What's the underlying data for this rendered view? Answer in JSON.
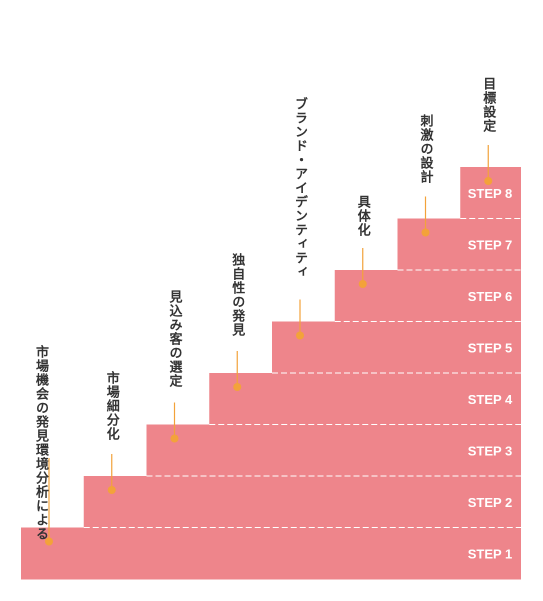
{
  "colors": {
    "stair_fill": "#ee858b",
    "divider": "#ffffff",
    "connector": "#f3a23a",
    "text": "#333333"
  },
  "steps": [
    {
      "label": "STEP 1",
      "lines": [
        "市場機会の発見",
        "環境分析による"
      ]
    },
    {
      "label": "STEP 2",
      "lines": [
        "市場細分化"
      ]
    },
    {
      "label": "STEP 3",
      "lines": [
        "見込み客の選定"
      ]
    },
    {
      "label": "STEP 4",
      "lines": [
        "独自性の発見"
      ]
    },
    {
      "label": "STEP 5",
      "lines": [
        "ブランド・アイデンティティ"
      ]
    },
    {
      "label": "STEP 6",
      "lines": [
        "具体化"
      ]
    },
    {
      "label": "STEP 7",
      "lines": [
        "刺激の設計"
      ]
    },
    {
      "label": "STEP 8",
      "lines": [
        "目標設定"
      ]
    }
  ]
}
